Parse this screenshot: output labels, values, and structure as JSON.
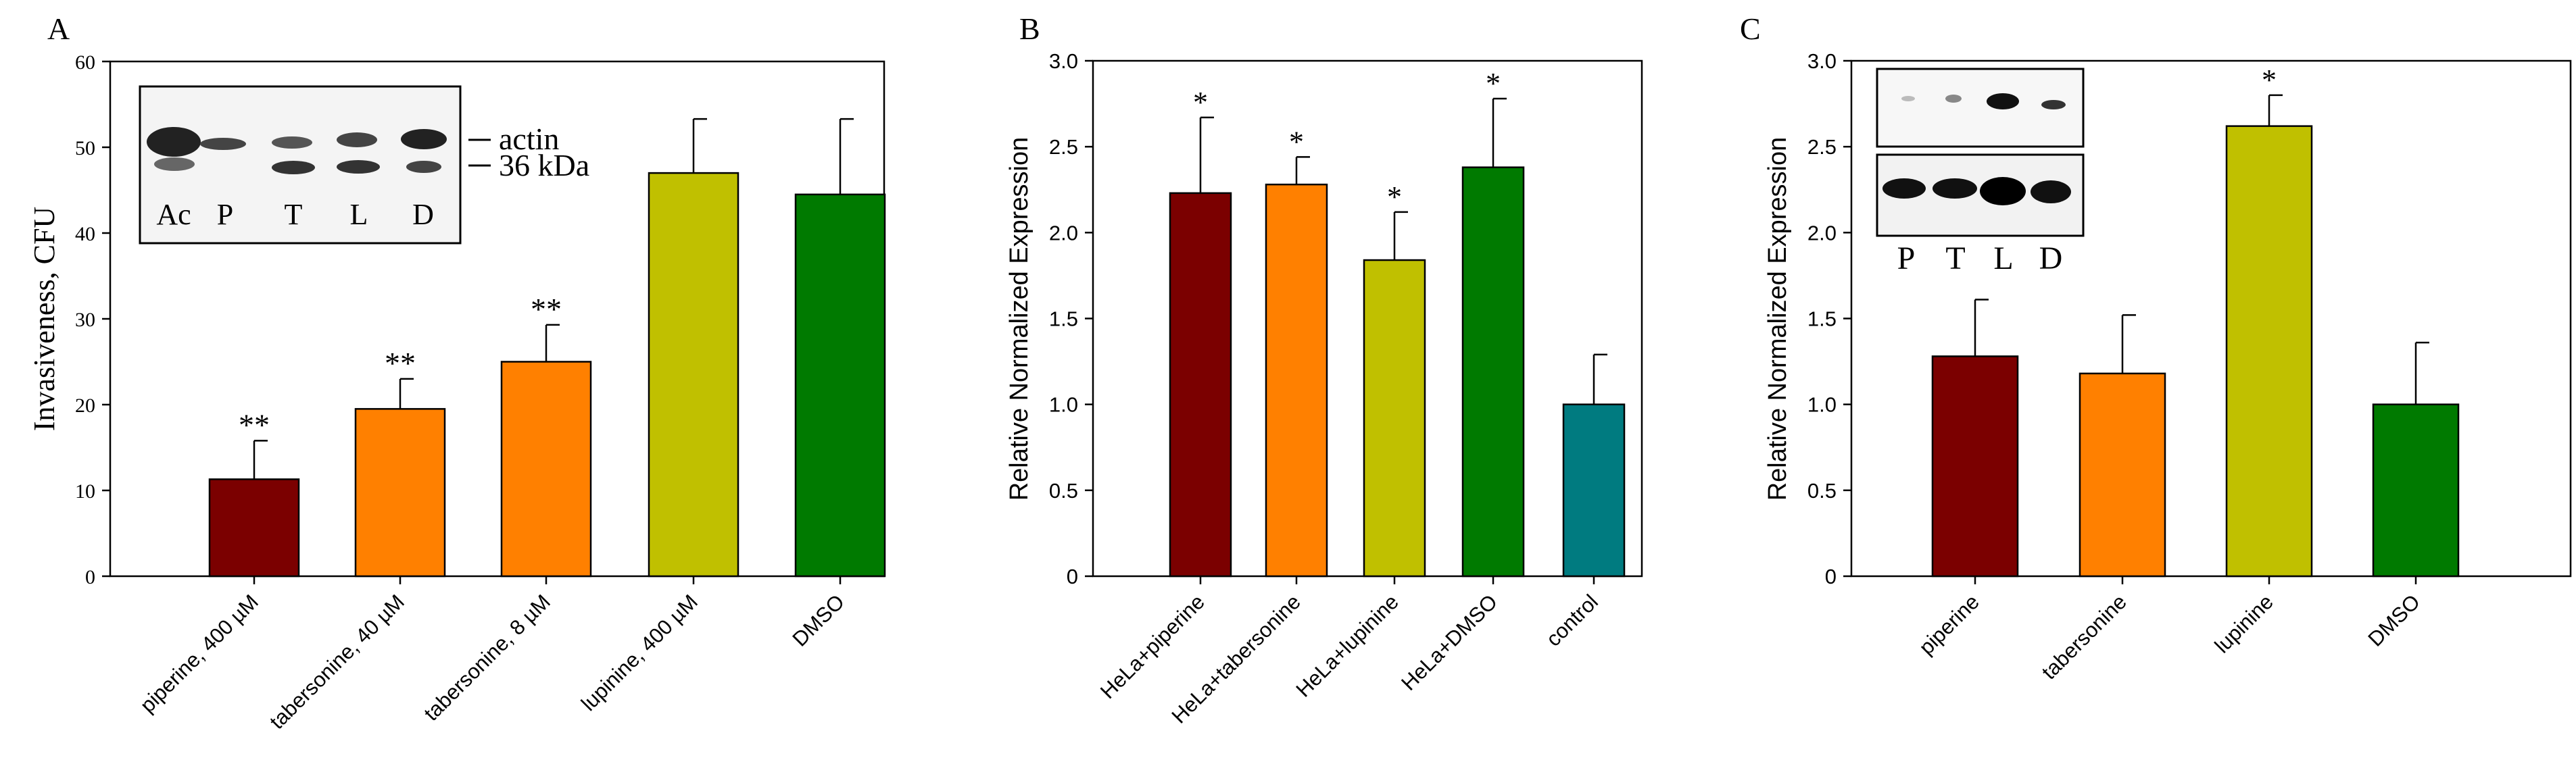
{
  "colors": {
    "piperine": "#7b0000",
    "tabersonine": "#ff8000",
    "lupinine": "#c0c000",
    "dmso": "#007a00",
    "control": "#007b80",
    "axis": "#000000",
    "blot_band": "#111111"
  },
  "chart_data": [
    {
      "panel": "A",
      "type": "bar",
      "title": "",
      "xlabel": "",
      "ylabel": "Invasiveness, CFU",
      "ylim": [
        0,
        60
      ],
      "yticks": [
        0,
        10,
        20,
        30,
        40,
        50,
        60
      ],
      "categories": [
        "piperine, 400 µM",
        "tabersonine, 40 µM",
        "tabersonine, 8 µM",
        "lupinine, 400 µM",
        "DMSO"
      ],
      "values": [
        11.3,
        19.5,
        25.0,
        47.0,
        44.5
      ],
      "errors": [
        4.5,
        3.5,
        4.3,
        6.3,
        8.8
      ],
      "significance": [
        "**",
        "**",
        "**",
        "",
        ""
      ],
      "colors": [
        "#7b0000",
        "#ff8000",
        "#ff8000",
        "#c0c000",
        "#007a00"
      ],
      "inset": {
        "type": "western-blot",
        "lane_labels": [
          "Ac",
          "P",
          "T",
          "L",
          "D"
        ],
        "band_labels": [
          "actin",
          "36 kDa"
        ]
      }
    },
    {
      "panel": "B",
      "type": "bar",
      "title": "",
      "xlabel": "",
      "ylabel": "Relative Normalized Expression",
      "ylim": [
        0,
        3.0
      ],
      "yticks": [
        "0",
        "0.5",
        "1.0",
        "1.5",
        "2.0",
        "2.5",
        "3.0"
      ],
      "categories": [
        "HeLa+piperine",
        "HeLa+tabersonine",
        "HeLa+lupinine",
        "HeLa+DMSO",
        "control"
      ],
      "values": [
        2.23,
        2.28,
        1.84,
        2.38,
        1.0
      ],
      "errors": [
        0.44,
        0.16,
        0.28,
        0.4,
        0.29
      ],
      "significance": [
        "*",
        "*",
        "*",
        "*",
        ""
      ],
      "colors": [
        "#7b0000",
        "#ff8000",
        "#c0c000",
        "#007a00",
        "#007b80"
      ]
    },
    {
      "panel": "C",
      "type": "bar",
      "title": "",
      "xlabel": "",
      "ylabel": "Relative Normalized Expression",
      "ylim": [
        0,
        3.0
      ],
      "yticks": [
        "0",
        "0.5",
        "1.0",
        "1.5",
        "2.0",
        "2.5",
        "3.0"
      ],
      "categories": [
        "piperine",
        "tabersonine",
        "lupinine",
        "DMSO"
      ],
      "values": [
        1.28,
        1.18,
        2.62,
        1.0
      ],
      "errors": [
        0.33,
        0.34,
        0.18,
        0.36
      ],
      "significance": [
        "",
        "",
        "*",
        ""
      ],
      "colors": [
        "#7b0000",
        "#ff8000",
        "#c0c000",
        "#007a00"
      ],
      "inset": {
        "type": "western-blot",
        "lane_labels": [
          "P",
          "T",
          "L",
          "D"
        ],
        "band_labels": []
      }
    }
  ]
}
